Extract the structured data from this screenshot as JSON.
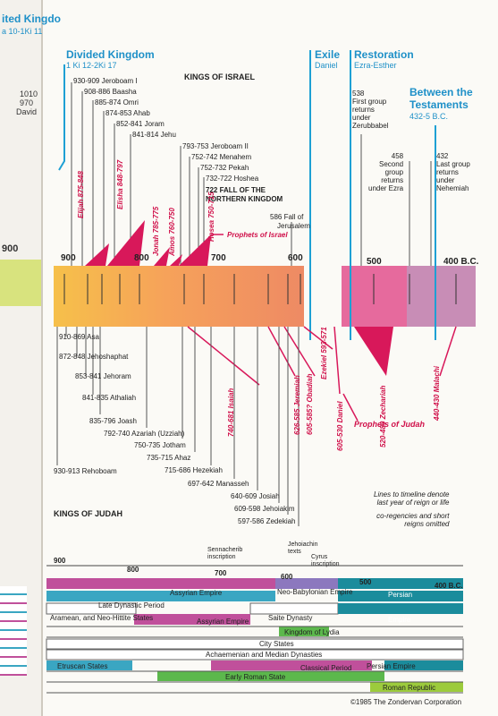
{
  "left_page": {
    "title": "ited Kingdo",
    "ref": "a 10-1Ki 11",
    "dates": [
      "1010",
      "970",
      "David"
    ],
    "axis": "900"
  },
  "headers": {
    "divided": {
      "title": "Divided Kingdom",
      "ref": "1 Ki 12-2Ki 17"
    },
    "exile": {
      "title": "Exile",
      "ref": "Daniel"
    },
    "restoration": {
      "title": "Restoration",
      "ref": "Ezra-Esther"
    },
    "between": {
      "title1": "Between the",
      "title2": "Testaments",
      "ref": "432-5 B.C."
    }
  },
  "kings_israel_title": "KINGS OF ISRAEL",
  "kings_judah_title": "KINGS OF JUDAH",
  "israel_kings": [
    "930-909 Jeroboam I",
    "908-886 Baasha",
    "885-874 Omri",
    "874-853 Ahab",
    "852-841 Joram",
    "841-814 Jehu",
    "793-753 Jeroboam II",
    "752-742 Menahem",
    "752-732 Pekah",
    "732-722 Hoshea"
  ],
  "fall_north": [
    "722 FALL OF THE",
    "NORTHERN KINGDOM"
  ],
  "fall_jerusalem": [
    "586 Fall of",
    "Jerusalem"
  ],
  "restoration_notes": {
    "first": [
      "538",
      "First group",
      "returns",
      "under",
      "Zerubbabel"
    ],
    "second": [
      "458",
      "Second",
      "group",
      "returns",
      "under Ezra"
    ],
    "last": [
      "432",
      "Last group",
      "returns",
      "under",
      "Nehemiah"
    ]
  },
  "israel_prophets": [
    "Elijah 875-848",
    "Elisha 848-797",
    "Jonah 785-775",
    "Amos 760-750",
    "Hosea 750-715"
  ],
  "prophets_israel_label": "Prophets of Israel",
  "judah_prophets": [
    "740-681 Isaiah",
    "626-585 Jeremiah",
    "605-585? Obadiah",
    "Ezekiel 593-571",
    "605-530 Daniel",
    "520-480 Zechariah",
    "440-430 Malachi"
  ],
  "prophets_judah_label": "Prophets of Judah",
  "axis": [
    "900",
    "800",
    "700",
    "600",
    "500",
    "400 B.C."
  ],
  "judah_kings": [
    "910-869 Asa",
    "872-848 Jehoshaphat",
    "853-841 Jehoram",
    "841-835 Athaliah",
    "835-796 Joash",
    "792-740 Azariah (Uzziah)",
    "750-735 Jotham",
    "735-715 Ahaz",
    "715-686 Hezekiah",
    "697-642 Manasseh",
    "640-609 Josiah",
    "609-598 Jehoiakim",
    "597-586 Zedekiah",
    "930-913 Rehoboam"
  ],
  "note": [
    "Lines to timeline denote",
    "last year of reign or life",
    "co-regencies and short",
    "reigns omitted"
  ],
  "bottom": {
    "inscriptions": {
      "sennacherib": [
        "Sennacherib",
        "inscription"
      ],
      "jehoiachin": [
        "Jehoiachin",
        "texts"
      ],
      "cyrus": [
        "Cyrus",
        "inscription"
      ]
    },
    "axis": [
      "900",
      "800",
      "700",
      "600",
      "500",
      "400 B.C."
    ],
    "bars": [
      "Assyrian Empire",
      "Neo-Babylonian Empire",
      "Persian",
      "Late Dynastic Period",
      "Saite Dynasty",
      "Empire",
      "Aramean, and Neo-Hittite States",
      "Assyrian Empire",
      "Kingdom of Lydia",
      "City States",
      "Achaemenian and Median Dynasties",
      "Persian Empire",
      "Etruscan States",
      "Classical Period",
      "Early Roman State",
      "Roman Republic"
    ],
    "copyright": "©1985 The Zondervan Corporation"
  }
}
